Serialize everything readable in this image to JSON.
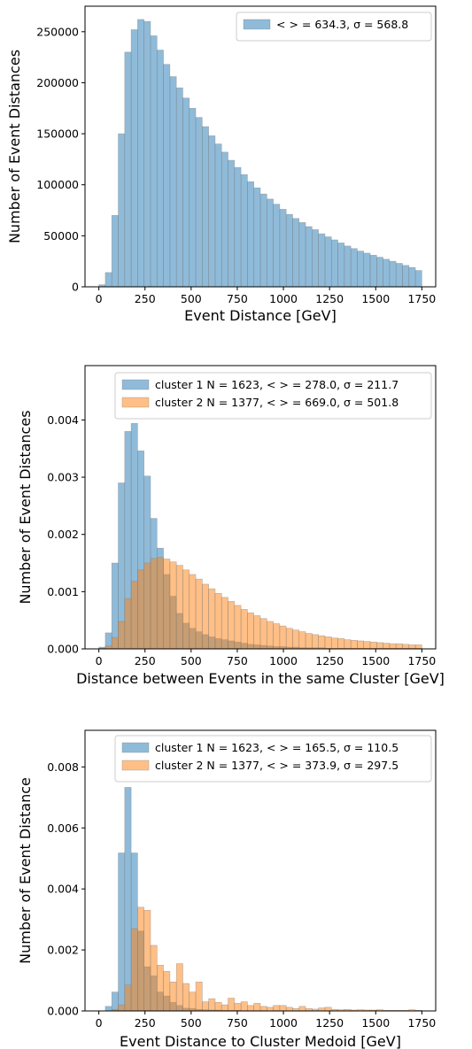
{
  "chart_data": [
    {
      "type": "histogram",
      "xlabel": "Event Distance [GeV]",
      "ylabel": "Number of Event Distances",
      "xlim": [
        -75,
        1825
      ],
      "ylim": [
        0,
        275000
      ],
      "xticks": [
        0,
        250,
        500,
        750,
        1000,
        1250,
        1500,
        1750
      ],
      "yticks": [
        0,
        50000,
        100000,
        150000,
        200000,
        250000
      ],
      "ytick_labels": [
        "0",
        "50000",
        "100000",
        "150000",
        "200000",
        "250000"
      ],
      "bin_edges": {
        "start": 0,
        "width": 35,
        "count": 50
      },
      "legend_location": "upper right",
      "series": [
        {
          "legend": "< > = 634.3, σ = 568.8",
          "color": "#1f77b4",
          "values": [
            2000,
            14000,
            70000,
            150000,
            230000,
            252000,
            262000,
            260000,
            246000,
            232000,
            218000,
            206000,
            195000,
            185000,
            175000,
            166000,
            157000,
            148000,
            140000,
            132000,
            124000,
            117000,
            110000,
            103000,
            97000,
            91000,
            86000,
            81000,
            76000,
            71000,
            67000,
            63000,
            59000,
            56000,
            52000,
            49000,
            46000,
            43000,
            40000,
            37500,
            35000,
            33000,
            31000,
            29000,
            27000,
            25000,
            23000,
            21000,
            19000,
            16000
          ]
        }
      ]
    },
    {
      "type": "histogram",
      "xlabel": "Distance between Events in the same Cluster [GeV]",
      "ylabel": "Number of Event Distances",
      "xlim": [
        -75,
        1825
      ],
      "ylim": [
        0,
        0.00495
      ],
      "xticks": [
        0,
        250,
        500,
        750,
        1000,
        1250,
        1500,
        1750
      ],
      "yticks": [
        0,
        0.001,
        0.002,
        0.003,
        0.004
      ],
      "ytick_labels": [
        "0.000",
        "0.001",
        "0.002",
        "0.003",
        "0.004"
      ],
      "bin_edges": {
        "start": 0,
        "width": 35,
        "count": 50
      },
      "legend_location": "upper right",
      "series": [
        {
          "legend": "cluster 1 N = 1623, < > = 278.0, σ = 211.7",
          "color": "#1f77b4",
          "values": [
            3e-05,
            0.00028,
            0.0015,
            0.0029,
            0.0038,
            0.00394,
            0.00346,
            0.00302,
            0.00228,
            0.00176,
            0.0013,
            0.00092,
            0.00062,
            0.00045,
            0.00036,
            0.0003,
            0.00025,
            0.00021,
            0.00018,
            0.00016,
            0.00014,
            0.00012,
            0.0001,
            8e-05,
            7e-05,
            6e-05,
            5e-05,
            4e-05,
            4e-05,
            3e-05,
            3e-05,
            2e-05,
            2e-05,
            2e-05,
            2e-05,
            1e-05,
            1e-05,
            1e-05,
            1e-05,
            1e-05,
            1e-05,
            1e-05,
            1e-05,
            1e-05,
            1e-05,
            1e-05,
            1e-05,
            1e-05,
            1e-05,
            1e-05
          ]
        },
        {
          "legend": "cluster 2 N = 1377, < > = 669.0, σ = 501.8",
          "color": "#ff7f0e",
          "values": [
            1e-05,
            5e-05,
            0.0002,
            0.00048,
            0.00088,
            0.00118,
            0.00138,
            0.0015,
            0.00158,
            0.0016,
            0.00157,
            0.00152,
            0.00146,
            0.00138,
            0.0013,
            0.00122,
            0.00113,
            0.00105,
            0.00097,
            0.0009,
            0.00083,
            0.00076,
            0.00069,
            0.00063,
            0.00058,
            0.00053,
            0.00048,
            0.00044,
            0.0004,
            0.00036,
            0.00033,
            0.0003,
            0.00027,
            0.00025,
            0.00023,
            0.00021,
            0.00019,
            0.00018,
            0.00016,
            0.00015,
            0.00014,
            0.00013,
            0.00012,
            0.00011,
            0.0001,
            9e-05,
            9e-05,
            8e-05,
            7e-05,
            7e-05
          ]
        }
      ]
    },
    {
      "type": "histogram",
      "xlabel": "Event Distance to Cluster Medoid [GeV]",
      "ylabel": "Number of Event Distance",
      "xlim": [
        -75,
        1825
      ],
      "ylim": [
        0,
        0.0092
      ],
      "xticks": [
        0,
        250,
        500,
        750,
        1000,
        1250,
        1500,
        1750
      ],
      "yticks": [
        0,
        0.002,
        0.004,
        0.006,
        0.008
      ],
      "ytick_labels": [
        "0.000",
        "0.002",
        "0.004",
        "0.006",
        "0.008"
      ],
      "bin_edges": {
        "start": 0,
        "width": 35,
        "count": 50
      },
      "legend_location": "upper right",
      "series": [
        {
          "legend": "cluster 1 N = 1623, < > = 165.5, σ = 110.5",
          "color": "#1f77b4",
          "values": [
            0,
            0.00015,
            0.00062,
            0.00518,
            0.00733,
            0.00518,
            0.00262,
            0.00145,
            0.00115,
            0.00062,
            0.00049,
            0.00028,
            0.00018,
            9e-05,
            8e-05,
            5e-05,
            4e-05,
            3e-05,
            3e-05,
            2e-05,
            2e-05,
            2e-05,
            1e-05,
            1e-05,
            1e-05,
            1e-05,
            0,
            1e-05,
            0,
            0,
            0,
            0,
            0,
            0,
            0,
            0,
            0,
            0,
            0,
            0,
            0,
            0,
            0,
            0,
            0,
            0,
            0,
            0,
            0,
            0
          ]
        },
        {
          "legend": "cluster 2 N = 1377, < > = 373.9, σ = 297.5",
          "color": "#ff7f0e",
          "values": [
            0,
            0,
            5e-05,
            0.0002,
            0.00085,
            0.0027,
            0.0034,
            0.0033,
            0.00215,
            0.0015,
            0.0013,
            0.00095,
            0.00155,
            0.0009,
            0.00062,
            0.00095,
            0.0003,
            0.0004,
            0.00028,
            0.0002,
            0.00042,
            0.00025,
            0.0003,
            0.00018,
            0.00025,
            0.00015,
            0.00012,
            0.00018,
            0.00018,
            0.00012,
            8e-05,
            0.00015,
            8e-05,
            6e-05,
            0.0001,
            0.00012,
            5e-05,
            4e-05,
            5e-05,
            3e-05,
            4e-05,
            3e-05,
            3e-05,
            4e-05,
            2e-05,
            2e-05,
            2e-05,
            2e-05,
            4e-05,
            2e-05
          ]
        }
      ]
    }
  ]
}
